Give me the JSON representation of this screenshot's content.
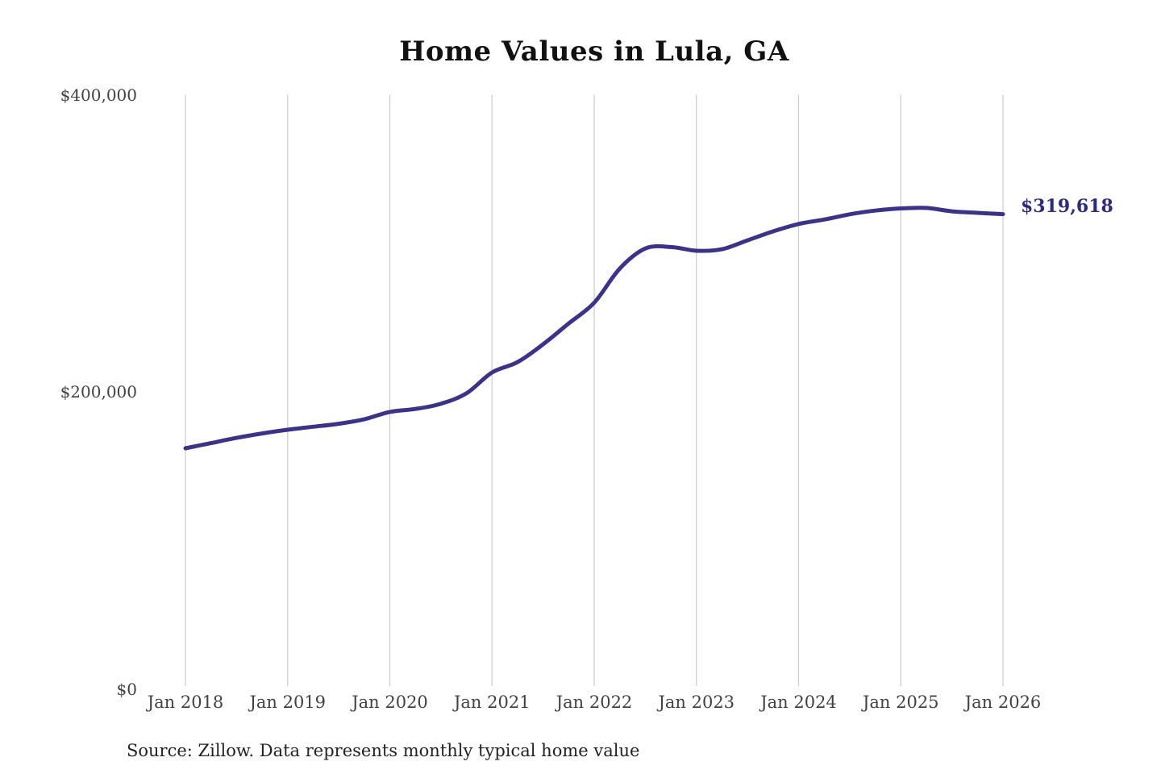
{
  "title": "Home Values in Lula, GA",
  "source_note": "Source: Zillow. Data represents monthly typical home value",
  "end_label": "$319,618",
  "colors": {
    "line": "#3b3387",
    "end_label": "#2e2a7d",
    "grid": "#cbcbcb",
    "title": "#111111",
    "axis_text": "#424242",
    "source_text": "#222222",
    "background": "#ffffff"
  },
  "chart_data": {
    "type": "line",
    "title": "Home Values in Lula, GA",
    "xlabel": "",
    "ylabel": "",
    "ylim": [
      0,
      400000
    ],
    "y_ticks": [
      0,
      200000,
      400000
    ],
    "y_tick_labels": [
      "$0",
      "$200,000",
      "$400,000"
    ],
    "x_tick_labels": [
      "Jan 2018",
      "Jan 2019",
      "Jan 2020",
      "Jan 2021",
      "Jan 2022",
      "Jan 2023",
      "Jan 2024",
      "Jan 2025",
      "Jan 2026"
    ],
    "grid": "vertical-only",
    "legend": "none",
    "end_value": 319618,
    "series": [
      {
        "name": "Monthly typical home value",
        "points": [
          {
            "date": "2018-01",
            "value": 162000
          },
          {
            "date": "2018-04",
            "value": 165500
          },
          {
            "date": "2018-07",
            "value": 169000
          },
          {
            "date": "2018-10",
            "value": 172000
          },
          {
            "date": "2019-01",
            "value": 174500
          },
          {
            "date": "2019-04",
            "value": 176500
          },
          {
            "date": "2019-07",
            "value": 178500
          },
          {
            "date": "2019-10",
            "value": 181500
          },
          {
            "date": "2020-01",
            "value": 186500
          },
          {
            "date": "2020-04",
            "value": 188500
          },
          {
            "date": "2020-07",
            "value": 192000
          },
          {
            "date": "2020-10",
            "value": 199000
          },
          {
            "date": "2021-01",
            "value": 213000
          },
          {
            "date": "2021-04",
            "value": 220000
          },
          {
            "date": "2021-07",
            "value": 232000
          },
          {
            "date": "2021-10",
            "value": 246000
          },
          {
            "date": "2022-01",
            "value": 260000
          },
          {
            "date": "2022-04",
            "value": 283000
          },
          {
            "date": "2022-07",
            "value": 296500
          },
          {
            "date": "2022-10",
            "value": 297500
          },
          {
            "date": "2023-01",
            "value": 295000
          },
          {
            "date": "2023-04",
            "value": 296000
          },
          {
            "date": "2023-07",
            "value": 302000
          },
          {
            "date": "2023-10",
            "value": 308000
          },
          {
            "date": "2024-01",
            "value": 313000
          },
          {
            "date": "2024-04",
            "value": 316000
          },
          {
            "date": "2024-07",
            "value": 319500
          },
          {
            "date": "2024-10",
            "value": 322000
          },
          {
            "date": "2025-01",
            "value": 323500
          },
          {
            "date": "2025-04",
            "value": 323800
          },
          {
            "date": "2025-07",
            "value": 321500
          },
          {
            "date": "2025-10",
            "value": 320500
          },
          {
            "date": "2026-01",
            "value": 319618
          }
        ]
      }
    ]
  }
}
